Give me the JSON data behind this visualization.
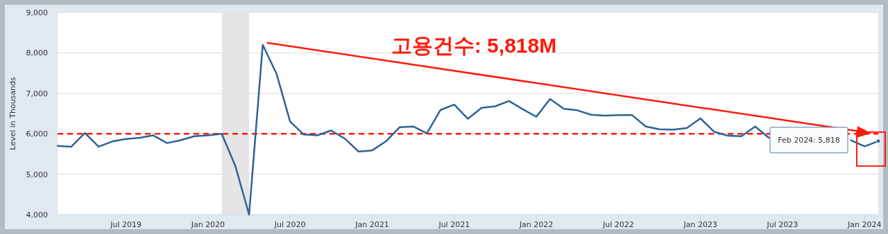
{
  "chart_data": {
    "type": "line",
    "ylabel": "Level in Thousands",
    "annotations": [
      "고용건수: 5,818M",
      "Feb 2024: 5,818"
    ],
    "x": [
      "2019-02",
      "2019-03",
      "2019-04",
      "2019-05",
      "2019-06",
      "2019-07",
      "2019-08",
      "2019-09",
      "2019-10",
      "2019-11",
      "2019-12",
      "2020-01",
      "2020-02",
      "2020-03",
      "2020-04",
      "2020-05",
      "2020-06",
      "2020-07",
      "2020-08",
      "2020-09",
      "2020-10",
      "2020-11",
      "2020-12",
      "2021-01",
      "2021-02",
      "2021-03",
      "2021-04",
      "2021-05",
      "2021-06",
      "2021-07",
      "2021-08",
      "2021-09",
      "2021-10",
      "2021-11",
      "2021-12",
      "2022-01",
      "2022-02",
      "2022-03",
      "2022-04",
      "2022-05",
      "2022-06",
      "2022-07",
      "2022-08",
      "2022-09",
      "2022-10",
      "2022-11",
      "2022-12",
      "2023-01",
      "2023-02",
      "2023-03",
      "2023-04",
      "2023-05",
      "2023-06",
      "2023-07",
      "2023-08",
      "2023-09",
      "2023-10",
      "2023-11",
      "2023-12",
      "2024-01",
      "2024-02"
    ],
    "series": [
      {
        "color": "#2f6097",
        "values": [
          5700,
          5680,
          6020,
          5680,
          5810,
          5870,
          5900,
          5960,
          5770,
          5840,
          5940,
          5960,
          6000,
          5200,
          4000,
          8200,
          7490,
          6300,
          5980,
          5960,
          6080,
          5880,
          5560,
          5590,
          5810,
          6160,
          6180,
          6010,
          6590,
          6720,
          6370,
          6640,
          6680,
          6810,
          6610,
          6420,
          6860,
          6620,
          6580,
          6470,
          6450,
          6460,
          6460,
          6180,
          6110,
          6100,
          6140,
          6380,
          6050,
          5950,
          5940,
          6180,
          5900,
          null,
          null,
          null,
          null,
          null,
          5840,
          5690,
          5818
        ]
      }
    ],
    "xlim": [
      "2019-02",
      "2024-02"
    ],
    "xticks": [
      {
        "value": "2019-07",
        "label": "Jul 2019"
      },
      {
        "value": "2020-01",
        "label": "Jan 2020"
      },
      {
        "value": "2020-07",
        "label": "Jul 2020"
      },
      {
        "value": "2021-01",
        "label": "Jan 2021"
      },
      {
        "value": "2021-07",
        "label": "Jul 2021"
      },
      {
        "value": "2022-01",
        "label": "Jan 2022"
      },
      {
        "value": "2022-07",
        "label": "Jul 2022"
      },
      {
        "value": "2023-01",
        "label": "Jan 2023"
      },
      {
        "value": "2023-07",
        "label": "Jul 2023"
      },
      {
        "value": "2024-01",
        "label": "Jan 2024"
      }
    ],
    "ylim": [
      4000,
      9000
    ],
    "yticks": [
      {
        "value": 4000,
        "label": "4,000"
      },
      {
        "value": 5000,
        "label": "5,000"
      },
      {
        "value": 6000,
        "label": "6,000"
      },
      {
        "value": 7000,
        "label": "7,000"
      },
      {
        "value": 8000,
        "label": "8,000"
      },
      {
        "value": 9000,
        "label": "9,000"
      }
    ],
    "grid": "y",
    "bands": [
      {
        "axis": "x",
        "from": "2020-02",
        "to": "2020-04",
        "color": "#e5e5e5"
      }
    ],
    "ref_lines": [
      {
        "axis": "y",
        "value": 6000,
        "color": "#ff1a0a",
        "line_style": "dashed"
      }
    ]
  }
}
